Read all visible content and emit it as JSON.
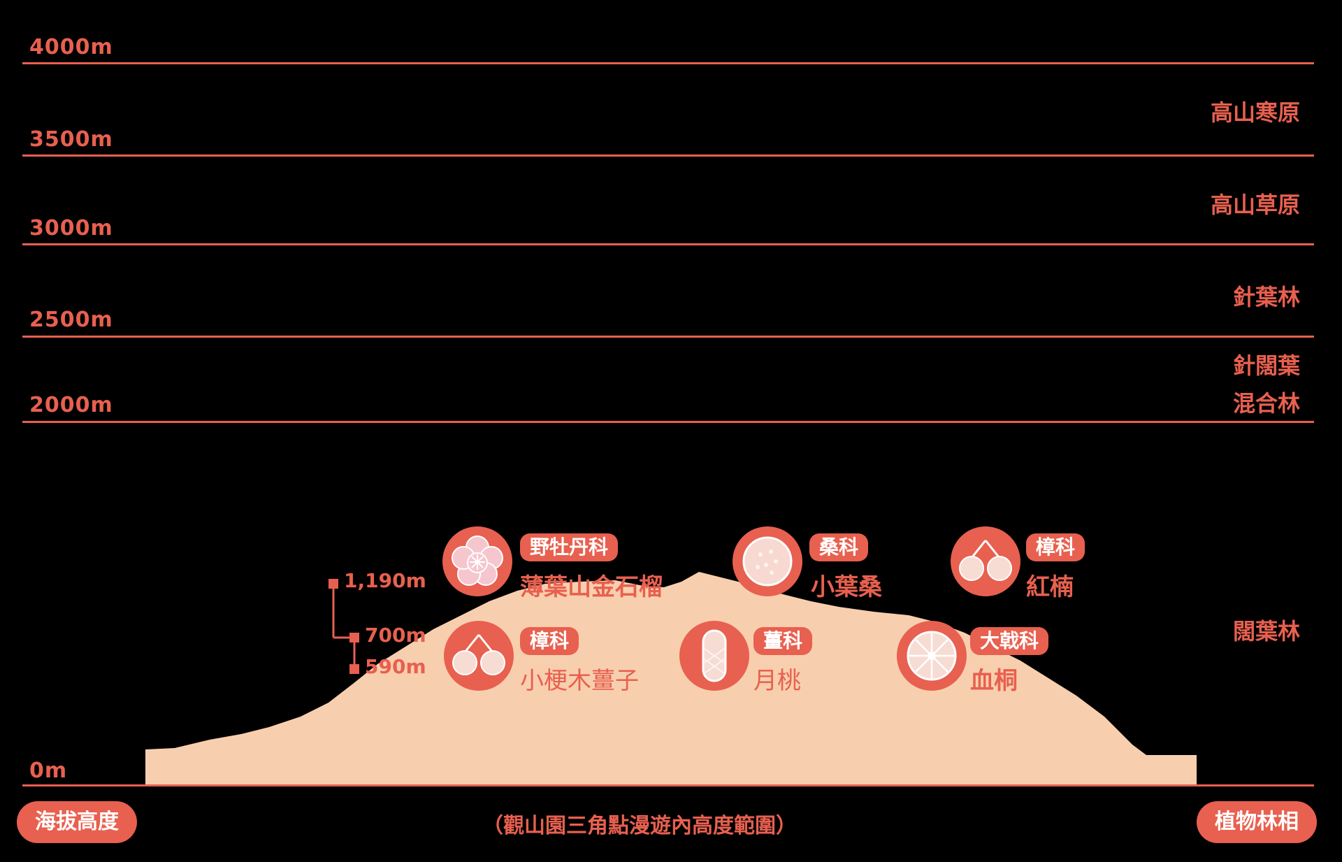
{
  "altitudes": [
    "4000m",
    "3500m",
    "3000m",
    "2500m",
    "2000m",
    "0m"
  ],
  "zones": {
    "alpine_cold_desert": "高山寒原",
    "alpine_meadow": "高山草原",
    "conifer_forest": "針葉林",
    "conifer_broadleaf": "針闊葉",
    "mixed_forest": "混合林",
    "broadleaf_forest": "闊葉林"
  },
  "bottom": {
    "left_label": "海拔高度",
    "right_label": "植物林相",
    "caption": "（觀山園三角點漫遊內高度範圍）"
  },
  "elevations": [
    "1,190m",
    "700m",
    "590m"
  ],
  "plants": [
    {
      "family": "野牡丹科",
      "species": "薄葉山金石榴",
      "icon": "flower-icon"
    },
    {
      "family": "桑科",
      "species": "小葉桑",
      "icon": "mulberry-icon"
    },
    {
      "family": "樟科",
      "species": "紅楠",
      "icon": "berry-pair-icon"
    },
    {
      "family": "樟科",
      "species": "小梗木薑子",
      "icon": "berry-pair-icon"
    },
    {
      "family": "薑科",
      "species": "月桃",
      "icon": "ginger-fruit-icon"
    },
    {
      "family": "大戟科",
      "species": "血桐",
      "icon": "fruit-cross-section-icon"
    }
  ],
  "colors": {
    "accent": "#e8604f",
    "mountain": "#f8cfae",
    "background": "#000000"
  }
}
